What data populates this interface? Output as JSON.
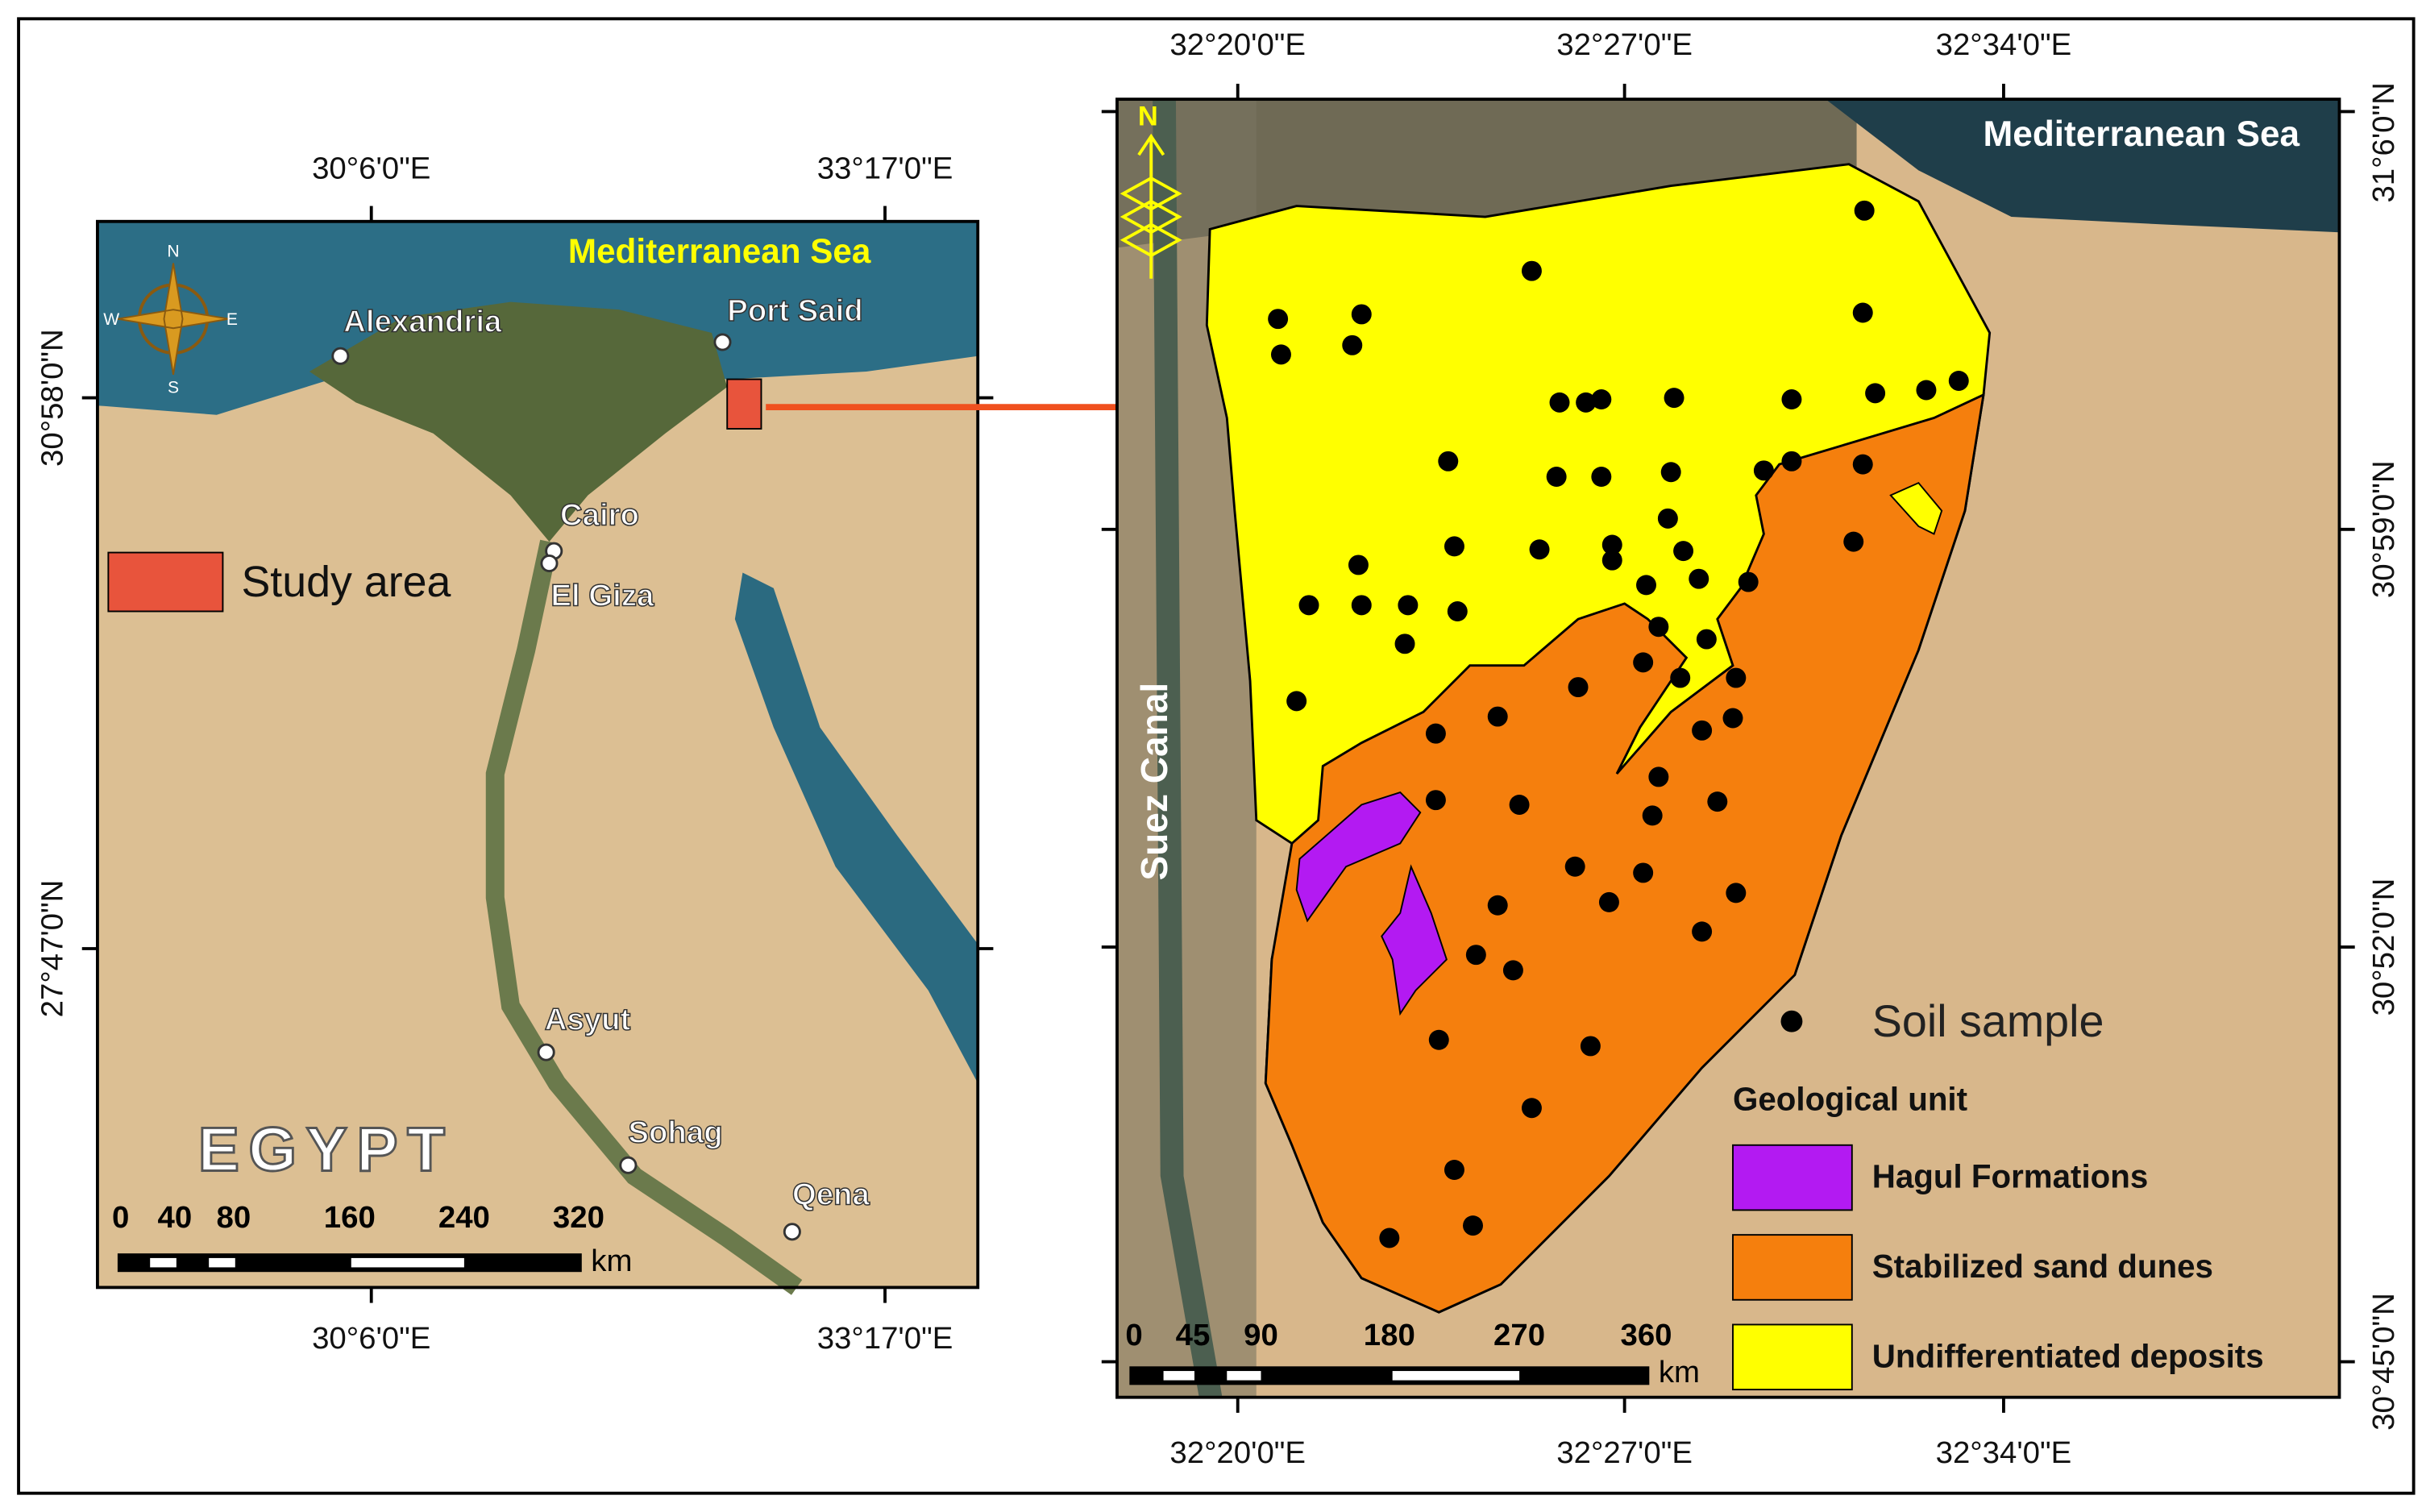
{
  "left_map": {
    "top_labels": [
      "30°6'0\"E",
      "33°17'0\"E"
    ],
    "bottom_labels": [
      "30°6'0\"E",
      "33°17'0\"E"
    ],
    "left_labels": [
      "30°58'0\"N",
      "27°47'0\"N"
    ],
    "sea": "Mediterranean Sea",
    "places": [
      "Alexandria",
      "Port Said",
      "Cairo",
      "El Giza",
      "Asyut",
      "Sohag",
      "Qena"
    ],
    "legend": "Study area",
    "country": "EGYPT",
    "compass": [
      "N",
      "S",
      "E",
      "W"
    ],
    "scale": [
      0,
      40,
      80,
      160,
      240,
      320
    ],
    "scale_unit": "km"
  },
  "right_map": {
    "top_labels": [
      "32°20'0\"E",
      "32°27'0\"E",
      "32°34'0\"E"
    ],
    "bottom_labels": [
      "32°20'0\"E",
      "32°27'0\"E",
      "32°34'0\"E"
    ],
    "right_labels": [
      "31°6'0\"N",
      "30°59'0\"N",
      "30°52'0\"N",
      "30°45'0\"N"
    ],
    "sea": "Mediterranean Sea",
    "canal": "Suez Canal",
    "compass": "N",
    "soil": "Soil sample",
    "legend_title": "Geological unit",
    "legend": [
      {
        "name": "Hagul Formations",
        "color": "#b31af2"
      },
      {
        "name": "Stabilized sand dunes",
        "color": "#f57f0d"
      },
      {
        "name": "Undifferentiated deposits",
        "color": "#ffff00"
      }
    ],
    "scale": [
      0,
      45,
      90,
      180,
      270,
      360
    ],
    "scale_unit": "km"
  }
}
